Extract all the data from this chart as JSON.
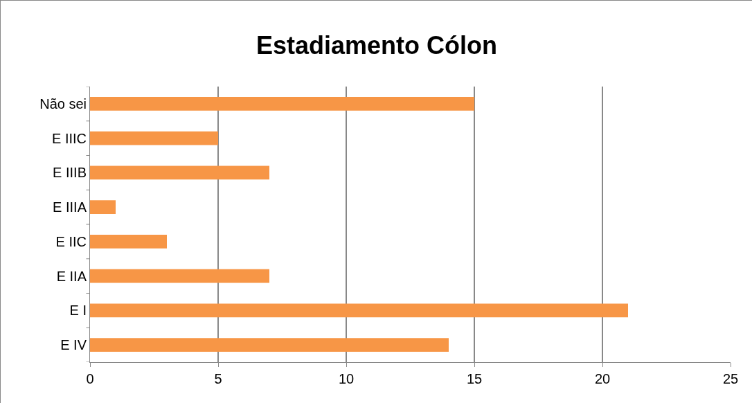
{
  "chart_data": {
    "type": "bar",
    "title": "Estadiamento Cólon",
    "orientation": "horizontal",
    "categories": [
      "Não sei",
      "E IIIC",
      "E IIIB",
      "E IIIA",
      "E IIC",
      "E IIA",
      "E I",
      "E IV"
    ],
    "values": [
      15,
      5,
      7,
      1,
      3,
      7,
      21,
      14
    ],
    "color": "#f79646",
    "xlim": [
      0,
      25
    ],
    "xticks": [
      0,
      5,
      10,
      15,
      20,
      25
    ],
    "grid": "x",
    "legend": false
  }
}
